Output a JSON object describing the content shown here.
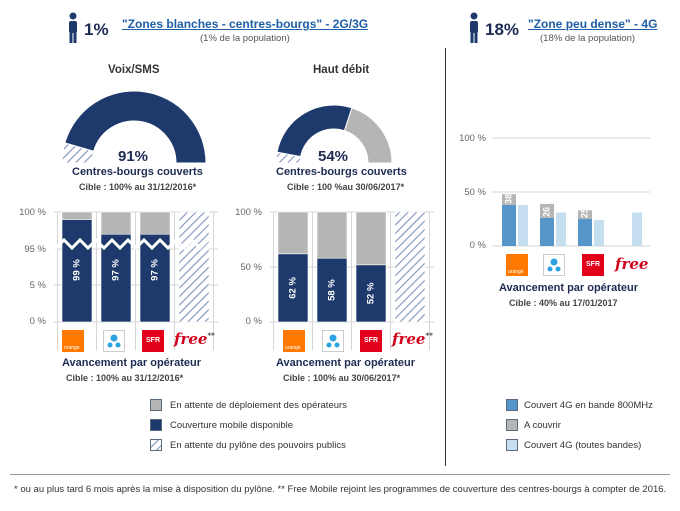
{
  "header_left": {
    "percent": "1%",
    "title": "\"Zones blanches - centres-bourgs\" - 2G/3G",
    "subtitle": "(1% de la population)"
  },
  "header_right": {
    "percent": "18%",
    "title": "\"Zone peu dense\" - 4G",
    "subtitle": "(18% de la population)"
  },
  "columns": {
    "voix": "Voix/SMS",
    "haut": "Haut débit"
  },
  "operators": {
    "orange": "orange",
    "sfr": "SFR",
    "free": "free",
    "free_mark": "**"
  },
  "icons": [
    "person-icon",
    "bouygues-logo",
    "orange-logo",
    "sfr-logo",
    "free-logo"
  ],
  "colors": {
    "navy": "#1e3a6c",
    "gray": "#b5b5b5",
    "hatch": "#7f93b8",
    "blue4g": "#5595c9",
    "light4g": "#c5dff0",
    "title_blue": "#1e5fa8"
  },
  "chart_data": [
    {
      "type": "pie",
      "id": "gauge_voix",
      "value_label": "91%",
      "values": [
        91,
        9
      ],
      "labels": [
        "Couverture mobile disponible",
        "En attente du pylône des pouvoirs publics"
      ],
      "title": "Centres-bourgs couverts",
      "target": "Cible : 100% au 31/12/2016*"
    },
    {
      "type": "pie",
      "id": "gauge_haut",
      "value_label": "54%",
      "values": [
        54,
        40,
        6
      ],
      "labels": [
        "Couverture mobile disponible",
        "En attente de déploiement des opérateurs",
        "En attente du pylône des pouvoirs publics"
      ],
      "title": "Centres-bourgs couverts",
      "target": "Cible : 100 %au 30/06/2017*"
    },
    {
      "type": "bar",
      "id": "bars_voix",
      "y_ticks": [
        "100 %",
        "95 %",
        "5 %",
        "0 %"
      ],
      "categories": [
        "orange",
        "bouygues",
        "SFR",
        "free"
      ],
      "series": [
        {
          "name": "Couverture mobile disponible",
          "values": [
            99,
            97,
            97,
            0
          ],
          "labels": [
            "99 %",
            "97 %",
            "97 %",
            ""
          ]
        },
        {
          "name": "En attente de déploiement des opérateurs",
          "values": [
            1,
            3,
            3,
            0
          ]
        },
        {
          "name": "En attente du pylône des pouvoirs publics",
          "values": [
            0,
            0,
            0,
            100
          ]
        }
      ],
      "title": "Avancement par opérateur",
      "target": "Cible : 100% au 31/12/2016*"
    },
    {
      "type": "bar",
      "id": "bars_haut",
      "y_ticks": [
        "100 %",
        "50 %",
        "0 %"
      ],
      "ylim": [
        0,
        100
      ],
      "categories": [
        "orange",
        "bouygues",
        "SFR",
        "free"
      ],
      "series": [
        {
          "name": "Couverture mobile disponible",
          "values": [
            62,
            58,
            52,
            0
          ],
          "labels": [
            "62 %",
            "58 %",
            "52 %",
            ""
          ]
        },
        {
          "name": "En attente de déploiement des opérateurs",
          "values": [
            38,
            42,
            48,
            0
          ]
        },
        {
          "name": "En attente du pylône des pouvoirs publics",
          "values": [
            0,
            0,
            0,
            100
          ]
        }
      ],
      "title": "Avancement par opérateur",
      "target": "Cible : 100% au 30/06/2017*"
    },
    {
      "type": "bar",
      "id": "bars_4g",
      "y_ticks": [
        "100 %",
        "50 %",
        "0 %"
      ],
      "ylim": [
        0,
        100
      ],
      "categories": [
        "orange",
        "bouygues",
        "SFR",
        "free"
      ],
      "series": [
        {
          "name": "Couvert 4G en bande 800MHz",
          "values": [
            38,
            26,
            25,
            0
          ],
          "labels": [
            "38 %",
            "26 %",
            "25 %",
            ""
          ]
        },
        {
          "name": "A couvrir",
          "values": [
            10,
            13,
            8,
            0
          ]
        },
        {
          "name": "Couvert 4G (toutes bandes)",
          "values": [
            38,
            31,
            24,
            31
          ]
        }
      ],
      "title": "Avancement par opérateur",
      "target": "Cible : 40% au 17/01/2017"
    }
  ],
  "legend_left": [
    {
      "label": "En attente de déploiement des opérateurs",
      "color": "#b5b5b5"
    },
    {
      "label": "Couverture mobile disponible",
      "color": "#1e3a6c"
    },
    {
      "label": "En attente du pylône des pouvoirs publics",
      "color": "hatch"
    }
  ],
  "legend_right": [
    {
      "label": "Couvert 4G en bande 800MHz",
      "color": "#5595c9"
    },
    {
      "label": "A couvrir",
      "color": "#b5b5b5"
    },
    {
      "label": "Couvert 4G (toutes bandes)",
      "color": "#c5dff0"
    }
  ],
  "footnote": "* ou au plus tard 6 mois après la mise à disposition du pylône.   ** Free Mobile rejoint les programmes de couverture des centres-bourgs à compter de 2016."
}
